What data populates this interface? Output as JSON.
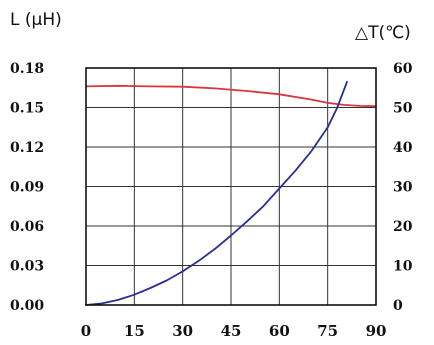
{
  "chart_data": {
    "type": "line",
    "y_label_left": "L (μH)",
    "y_label_right": "△T(℃)",
    "x_ticks": [
      "0",
      "15",
      "30",
      "45",
      "60",
      "75",
      "90"
    ],
    "y_left_ticks": [
      "0.00",
      "0.03",
      "0.06",
      "0.09",
      "0.12",
      "0.15",
      "0.18"
    ],
    "y_right_ticks": [
      "0",
      "10",
      "20",
      "30",
      "40",
      "50",
      "60"
    ],
    "xlim": [
      0,
      90
    ],
    "ylim_left": [
      0,
      0.18
    ],
    "ylim_right": [
      0,
      60
    ],
    "grid": true,
    "series": [
      {
        "axis": "left",
        "color": "#d9363e",
        "x": [
          0,
          10,
          20,
          30,
          40,
          50,
          60,
          70,
          75,
          80,
          85,
          90
        ],
        "y": [
          0.166,
          0.1665,
          0.166,
          0.1658,
          0.1645,
          0.1625,
          0.16,
          0.156,
          0.1535,
          0.152,
          0.1512,
          0.151
        ]
      },
      {
        "axis": "right",
        "color": "#2a2f8f",
        "x": [
          0,
          5,
          10,
          15,
          20,
          25,
          30,
          35,
          40,
          45,
          50,
          55,
          60,
          65,
          70,
          75,
          78,
          81
        ],
        "y": [
          0,
          0.4,
          1.3,
          2.6,
          4.3,
          6.2,
          8.5,
          11.2,
          14.2,
          17.6,
          21.2,
          25.0,
          29.5,
          34.0,
          39.0,
          45.0,
          50.0,
          56.5
        ]
      }
    ]
  }
}
